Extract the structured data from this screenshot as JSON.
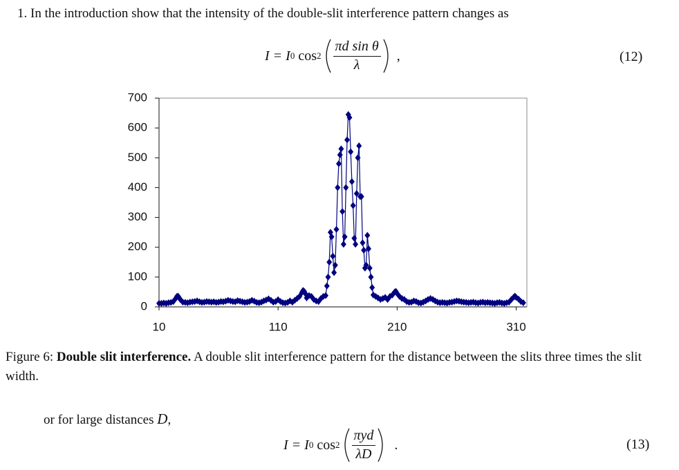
{
  "problem": {
    "text": "1. In the introduction show that the intensity of the double-slit interference pattern changes as",
    "equation": {
      "lhs": "I = I",
      "sub": "0",
      "func": "cos",
      "sup": "2",
      "numerator": "πd sin θ",
      "denominator": "λ",
      "punct": ",",
      "number": "(12)"
    }
  },
  "chart_data": {
    "type": "line",
    "marker": "diamond",
    "x": [
      10,
      12,
      14,
      16,
      18,
      20,
      22,
      24,
      25,
      26,
      27,
      28,
      30,
      32,
      34,
      36,
      38,
      40,
      42,
      44,
      46,
      48,
      50,
      52,
      54,
      56,
      58,
      60,
      62,
      64,
      66,
      68,
      70,
      72,
      74,
      76,
      78,
      80,
      82,
      84,
      86,
      88,
      90,
      92,
      94,
      96,
      98,
      100,
      102,
      104,
      106,
      108,
      110,
      112,
      114,
      116,
      118,
      120,
      122,
      124,
      126,
      128,
      130,
      131,
      132,
      133,
      134,
      136,
      138,
      140,
      142,
      144,
      146,
      148,
      150,
      151,
      152,
      153,
      154,
      155,
      156,
      157,
      158,
      159,
      160,
      161,
      162,
      163,
      164,
      165,
      166,
      167,
      168,
      169,
      170,
      171,
      172,
      173,
      174,
      175,
      176,
      177,
      178,
      179,
      180,
      181,
      182,
      183,
      184,
      185,
      186,
      187,
      188,
      189,
      190,
      192,
      194,
      196,
      198,
      200,
      202,
      204,
      206,
      208,
      209,
      210,
      212,
      214,
      216,
      218,
      220,
      222,
      224,
      226,
      228,
      230,
      232,
      234,
      236,
      238,
      240,
      242,
      244,
      246,
      248,
      250,
      252,
      254,
      256,
      258,
      260,
      262,
      264,
      266,
      268,
      270,
      272,
      274,
      276,
      278,
      280,
      282,
      284,
      286,
      288,
      290,
      292,
      294,
      296,
      298,
      300,
      302,
      304,
      306,
      308,
      309,
      310,
      312,
      314,
      316
    ],
    "series": [
      {
        "color": "#000080",
        "values": [
          12,
          12,
          13,
          12,
          14,
          15,
          18,
          28,
          35,
          36,
          30,
          24,
          16,
          15,
          14,
          16,
          17,
          18,
          20,
          17,
          15,
          16,
          18,
          17,
          16,
          17,
          15,
          16,
          18,
          17,
          19,
          22,
          20,
          18,
          17,
          21,
          19,
          17,
          15,
          16,
          18,
          22,
          19,
          15,
          14,
          16,
          20,
          23,
          27,
          22,
          16,
          18,
          24,
          18,
          14,
          13,
          15,
          20,
          16,
          22,
          28,
          35,
          48,
          55,
          52,
          44,
          30,
          38,
          35,
          25,
          20,
          18,
          28,
          35,
          38,
          70,
          100,
          150,
          250,
          235,
          170,
          115,
          140,
          260,
          400,
          480,
          510,
          530,
          320,
          210,
          235,
          400,
          560,
          645,
          635,
          520,
          420,
          340,
          230,
          210,
          380,
          500,
          540,
          370,
          370,
          215,
          190,
          130,
          140,
          240,
          195,
          130,
          100,
          65,
          40,
          35,
          30,
          25,
          28,
          32,
          25,
          35,
          40,
          50,
          52,
          45,
          35,
          28,
          25,
          18,
          15,
          16,
          20,
          18,
          14,
          13,
          16,
          20,
          25,
          28,
          25,
          20,
          16,
          14,
          15,
          14,
          13,
          15,
          16,
          18,
          20,
          19,
          17,
          16,
          15,
          14,
          15,
          16,
          14,
          13,
          15,
          16,
          14,
          15,
          14,
          13,
          12,
          14,
          15,
          13,
          12,
          14,
          16,
          25,
          33,
          36,
          32,
          26,
          18,
          14
        ]
      }
    ],
    "xlim": [
      10,
      319
    ],
    "ylim": [
      0,
      700
    ],
    "xticks": [
      10,
      110,
      210,
      310
    ],
    "yticks": [
      0,
      100,
      200,
      300,
      400,
      500,
      600,
      700
    ],
    "grid": false
  },
  "caption": {
    "label": "Figure 6: ",
    "title": "Double slit interference.",
    "text": " A double slit interference pattern for the distance between the slits three times the slit width."
  },
  "continuation": {
    "text": "or for large distances ",
    "var": "D",
    "punct": ","
  },
  "equation13": {
    "lhs": "I = I",
    "sub": "0",
    "func": "cos",
    "sup": "2",
    "numerator": "πyd",
    "denominator": "λD",
    "punct": ".",
    "number": "(13)"
  }
}
